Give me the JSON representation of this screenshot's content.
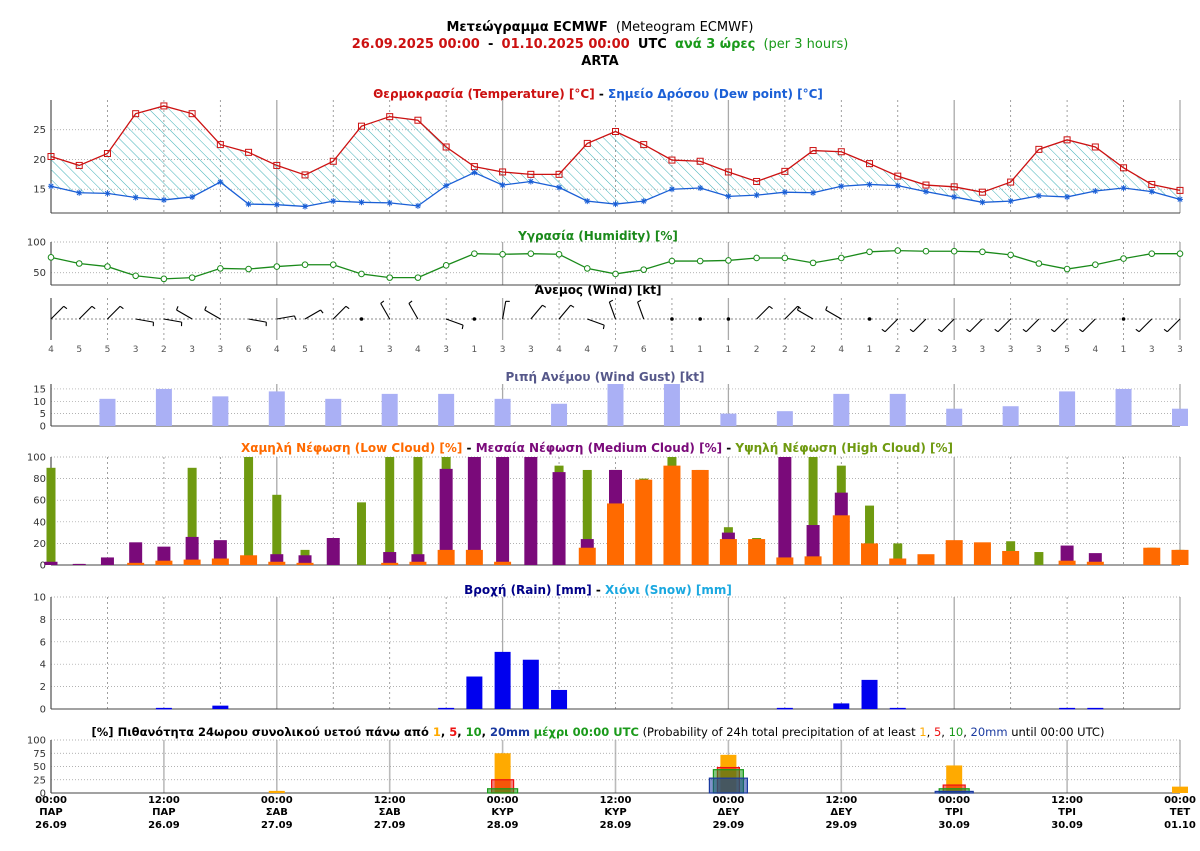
{
  "header": {
    "line1_bold": "Μετεώγραμμα ECMWF",
    "line1_normal": "(Meteogram ECMWF)",
    "range_start": "26.09.2025 00:00",
    "range_dash": "-",
    "range_end": "01.10.2025 00:00",
    "range_utc": "UTC",
    "step_bold": "ανά 3 ώρες",
    "step_normal": "(per 3 hours)",
    "location": "ARTA"
  },
  "colors": {
    "temp": "#cc1111",
    "dew": "#1a5fd6",
    "humidity": "#1a8a1a",
    "gust": "#aab0f5",
    "low_cloud": "#ff6a00",
    "mid_cloud": "#7a0a7a",
    "high_cloud": "#6f9a10",
    "rain": "#0000ee",
    "snow": "#1aa8e0",
    "p1": "#ffaa00",
    "p5": "#ee1111",
    "p10": "#1a9a1a",
    "p20": "#1a3aa0"
  },
  "panel_titles": {
    "temp_a": "Θερμοκρασία (Temperature) [°C]",
    "temp_sep": " - ",
    "temp_b": "Σημείο Δρόσου (Dew point) [°C]",
    "humidity": "Υγρασία (Humidity) [%]",
    "wind": "Άνεμος (Wind) [kt]",
    "gust": "Ριπή Ανέμου (Wind Gust) [kt]",
    "cloud_a": "Χαμηλή Νέφωση (Low Cloud) [%]",
    "cloud_sep1": " - ",
    "cloud_b": "Μεσαία Νέφωση (Medium Cloud) [%]",
    "cloud_sep2": " - ",
    "cloud_c": "Υψηλή Νέφωση (High Cloud) [%]",
    "rain_a": "Βροχή (Rain) [mm]",
    "rain_sep": " - ",
    "rain_b": "Χιόνι (Snow) [mm]",
    "prob_a": "[%] Πιθανότητα 24ωρου συνολικού υετού πάνω από",
    "prob_mm": "mm",
    "prob_until": "μέχρι 00:00 UTC",
    "prob_b": "(Probability of 24h total precipitation of at least",
    "prob_until_en": "until 00:00 UTC)",
    "prob_thresholds": [
      "1",
      "5",
      "10",
      "20"
    ]
  },
  "chart_data": [
    {
      "type": "line",
      "title": "Θερμοκρασία (Temperature) [°C] - Σημείο Δρόσου (Dew point) [°C]",
      "ylim": [
        11,
        30
      ],
      "yticks": [
        15,
        20,
        25
      ],
      "series": [
        {
          "name": "Θερμοκρασία (Temperature) [°C]",
          "values": [
            20.5,
            19,
            21,
            27.7,
            29,
            27.7,
            22.5,
            21.2,
            19,
            17.4,
            19.7,
            25.6,
            27.2,
            26.6,
            22.1,
            18.8,
            17.9,
            17.5,
            17.5,
            22.7,
            24.7,
            22.5,
            19.9,
            19.7,
            17.9,
            16.3,
            18,
            21.5,
            21.3,
            19.3,
            17.2,
            15.7,
            15.4,
            14.5,
            16.2,
            21.7,
            23.3,
            22.1,
            18.6,
            15.8,
            14.8
          ]
        },
        {
          "name": "Σημείο Δρόσου (Dew point) [°C]",
          "values": [
            15.5,
            14.4,
            14.3,
            13.6,
            13.2,
            13.7,
            16.2,
            12.5,
            12.4,
            12.1,
            13,
            12.8,
            12.7,
            12.2,
            15.6,
            17.8,
            15.7,
            16.3,
            15.3,
            13,
            12.5,
            13,
            15,
            15.2,
            13.8,
            14,
            14.5,
            14.4,
            15.5,
            15.8,
            15.6,
            14.6,
            13.7,
            12.8,
            13,
            13.9,
            13.7,
            14.7,
            15.2,
            14.6,
            13.3
          ]
        }
      ]
    },
    {
      "type": "line",
      "title": "Υγρασία (Humidity) [%]",
      "ylim": [
        30,
        100
      ],
      "yticks": [
        50,
        100
      ],
      "series": [
        {
          "name": "Υγρασία (Humidity) [%]",
          "values": [
            75,
            65,
            60,
            45,
            40,
            42,
            57,
            56,
            60,
            63,
            63,
            48,
            42,
            42,
            62,
            81,
            80,
            81,
            80,
            57,
            48,
            55,
            69,
            69,
            70,
            74,
            74,
            66,
            74,
            84,
            86,
            85,
            85,
            84,
            79,
            65,
            56,
            63,
            73,
            81,
            81
          ]
        }
      ]
    },
    {
      "type": "wind",
      "title": "Άνεμος (Wind) [kt]",
      "speeds": [
        4,
        5,
        5,
        3,
        2,
        3,
        3,
        6,
        4,
        5,
        4,
        1,
        3,
        4,
        3,
        1,
        3,
        3,
        4,
        4,
        7,
        6,
        1,
        1,
        1,
        2,
        2,
        2,
        4,
        1,
        2,
        2,
        3,
        3,
        3,
        3,
        5,
        4,
        1,
        3,
        3
      ],
      "directions_deg": [
        45,
        45,
        45,
        100,
        100,
        300,
        300,
        100,
        80,
        60,
        45,
        0,
        330,
        330,
        110,
        0,
        10,
        40,
        40,
        110,
        340,
        340,
        0,
        0,
        45,
        45,
        45,
        300,
        300,
        340,
        225,
        225,
        225,
        225,
        225,
        225,
        225,
        225,
        0,
        225,
        225
      ]
    },
    {
      "type": "bar",
      "title": "Ριπή Ανέμου (Wind Gust) [kt]",
      "ylim": [
        0,
        17
      ],
      "yticks": [
        0,
        5,
        10,
        15
      ],
      "values": [
        null,
        null,
        11,
        null,
        15,
        null,
        12,
        null,
        14,
        null,
        11,
        null,
        13,
        null,
        13,
        null,
        11,
        null,
        9,
        null,
        17,
        null,
        17,
        null,
        5,
        null,
        6,
        null,
        13,
        null,
        13,
        null,
        7,
        null,
        8,
        null,
        14,
        null,
        15,
        null,
        7
      ]
    },
    {
      "type": "bar",
      "title": "Χαμηλή Νέφωση (Low Cloud) [%] - Μεσαία Νέφωση (Medium Cloud) [%] - Υψηλή Νέφωση (High Cloud) [%]",
      "ylim": [
        0,
        100
      ],
      "yticks": [
        0,
        20,
        40,
        60,
        80,
        100
      ],
      "series": [
        {
          "name": "Υψηλή Νέφωση (High Cloud) [%]",
          "values": [
            90,
            1,
            5,
            15,
            15,
            90,
            15,
            100,
            65,
            14,
            20,
            58,
            100,
            100,
            100,
            100,
            100,
            100,
            92,
            88,
            88,
            80,
            100,
            88,
            35,
            25,
            70,
            100,
            92,
            55,
            20,
            6,
            10,
            20,
            22,
            12,
            15,
            10,
            0,
            16,
            14
          ]
        },
        {
          "name": "Μεσαία Νέφωση (Medium Cloud) [%]",
          "values": [
            3,
            1,
            7,
            21,
            17,
            26,
            23,
            4,
            10,
            9,
            25,
            0,
            12,
            10,
            89,
            100,
            100,
            100,
            86,
            24,
            88,
            0,
            0,
            0,
            30,
            0,
            100,
            37,
            67,
            0,
            0,
            0,
            0,
            0,
            0,
            0,
            18,
            11,
            0,
            0,
            0
          ]
        },
        {
          "name": "Χαμηλή Νέφωση (Low Cloud) [%]",
          "values": [
            0,
            0,
            0,
            2,
            4,
            5,
            6,
            9,
            3,
            2,
            0,
            0,
            2,
            3,
            14,
            14,
            3,
            0,
            0,
            16,
            57,
            79,
            92,
            88,
            24,
            24,
            7,
            8,
            46,
            20,
            6,
            10,
            23,
            21,
            13,
            0,
            4,
            3,
            0,
            16,
            14
          ]
        }
      ]
    },
    {
      "type": "bar",
      "title": "Βροχή (Rain) [mm] - Χιόνι (Snow) [mm]",
      "ylim": [
        0,
        10
      ],
      "yticks": [
        0,
        2,
        4,
        6,
        8,
        10
      ],
      "series": [
        {
          "name": "Βροχή (Rain) [mm]",
          "values": [
            0,
            0,
            0,
            0,
            0.1,
            0,
            0.3,
            0,
            0,
            0,
            0,
            0,
            0,
            0,
            0.1,
            2.9,
            5.1,
            4.4,
            1.7,
            0,
            0,
            0,
            0,
            0,
            0,
            0,
            0.1,
            0,
            0.5,
            2.6,
            0.1,
            0,
            0,
            0,
            0,
            0,
            0.1,
            0.1,
            0,
            0,
            0
          ]
        },
        {
          "name": "Χιόνι (Snow) [mm]",
          "values": []
        }
      ]
    },
    {
      "type": "bar",
      "title": "[%] Πιθανότητα 24ωρου συνολικού υετού πάνω από 1, 5, 10, 20mm μέχρι 00:00 UTC",
      "ylim": [
        0,
        100
      ],
      "yticks": [
        0,
        25,
        50,
        75,
        100
      ],
      "x": [
        "26.09",
        "27.09",
        "28.09",
        "29.09",
        "30.09",
        "01.10"
      ],
      "series": [
        {
          "name": "1",
          "values": [
            0,
            4,
            75,
            72,
            52,
            12
          ]
        },
        {
          "name": "5",
          "values": [
            0,
            0,
            25,
            48,
            15,
            0
          ]
        },
        {
          "name": "10",
          "values": [
            0,
            0,
            8,
            44,
            8,
            0
          ]
        },
        {
          "name": "20",
          "values": [
            0,
            0,
            0,
            28,
            3,
            0
          ]
        }
      ]
    }
  ],
  "x_axis": {
    "ticks": [
      {
        "time": "00:00",
        "day": "ΠΑΡ",
        "date": "26.09"
      },
      {
        "time": "12:00",
        "day": "ΠΑΡ",
        "date": "26.09"
      },
      {
        "time": "00:00",
        "day": "ΣΑΒ",
        "date": "27.09"
      },
      {
        "time": "12:00",
        "day": "ΣΑΒ",
        "date": "27.09"
      },
      {
        "time": "00:00",
        "day": "ΚΥΡ",
        "date": "28.09"
      },
      {
        "time": "12:00",
        "day": "ΚΥΡ",
        "date": "28.09"
      },
      {
        "time": "00:00",
        "day": "ΔΕΥ",
        "date": "29.09"
      },
      {
        "time": "12:00",
        "day": "ΔΕΥ",
        "date": "29.09"
      },
      {
        "time": "00:00",
        "day": "ΤΡΙ",
        "date": "30.09"
      },
      {
        "time": "12:00",
        "day": "ΤΡΙ",
        "date": "30.09"
      },
      {
        "time": "00:00",
        "day": "ΤΕΤ",
        "date": "01.10"
      }
    ]
  }
}
